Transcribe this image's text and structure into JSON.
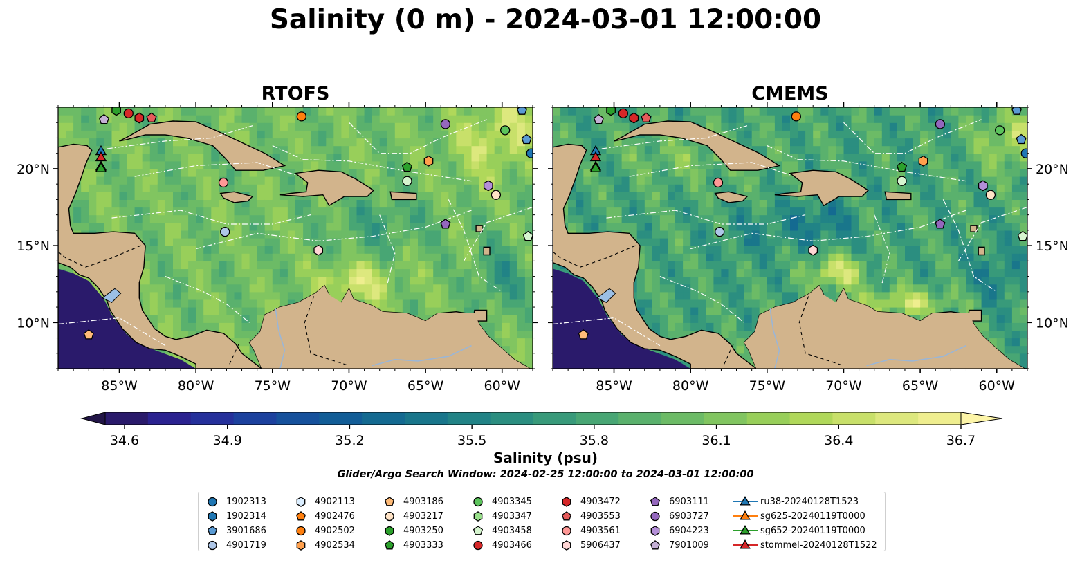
{
  "title": "Salinity (0 m) - 2024-03-01 12:00:00",
  "panels": [
    {
      "title": "RTOFS"
    },
    {
      "title": "CMEMS"
    }
  ],
  "chart_data": {
    "type": "heatmap",
    "colormap": "summer-yellow to deep blue (haline)",
    "colorbar": {
      "label": "Salinity (psu)",
      "min": 34.6,
      "max": 36.7,
      "ticks": [
        "34.6",
        "34.9",
        "35.2",
        "35.5",
        "35.8",
        "36.1",
        "36.4",
        "36.7"
      ],
      "extend": "both",
      "colors": [
        "#2a1a6b",
        "#2b2290",
        "#25309b",
        "#1c419e",
        "#16519c",
        "#125d97",
        "#146a91",
        "#19768b",
        "#218386",
        "#2b8e80",
        "#389a7a",
        "#48a674",
        "#5ab16d",
        "#6cbb66",
        "#81c560",
        "#98cf5a",
        "#b0d85a",
        "#c8e06a",
        "#dde87e",
        "#efee8f"
      ]
    },
    "xlim": [
      -89,
      -58
    ],
    "ylim": [
      7,
      24
    ],
    "x_ticks": [
      "85°W",
      "80°W",
      "75°W",
      "70°W",
      "65°W",
      "60°W"
    ],
    "y_ticks": [
      "10°N",
      "15°N",
      "20°N"
    ],
    "land_color": "#d2b48c",
    "lake_color": "#9bbfe6"
  },
  "footer": {
    "search_window": "Glider/Argo Search Window: 2024-02-25 12:00:00 to 2024-03-01 12:00:00"
  },
  "legend": {
    "items": [
      {
        "label": "1902313",
        "marker": "circle",
        "color": "#1f77b4"
      },
      {
        "label": "1902314",
        "marker": "hexagon",
        "color": "#1f77b4"
      },
      {
        "label": "3901686",
        "marker": "pentagon",
        "color": "#5a9bd4"
      },
      {
        "label": "4901719",
        "marker": "circle",
        "color": "#aec7e8"
      },
      {
        "label": "4902113",
        "marker": "hexagon",
        "color": "#dbeeff"
      },
      {
        "label": "4902476",
        "marker": "pentagon",
        "color": "#ff7f0e"
      },
      {
        "label": "4902502",
        "marker": "circle",
        "color": "#ff7f0e"
      },
      {
        "label": "4902534",
        "marker": "hexagon",
        "color": "#ffa04d"
      },
      {
        "label": "4903186",
        "marker": "pentagon",
        "color": "#ffbb78"
      },
      {
        "label": "4903217",
        "marker": "circle",
        "color": "#ffe3c6"
      },
      {
        "label": "4903250",
        "marker": "hexagon",
        "color": "#2ca02c"
      },
      {
        "label": "4903333",
        "marker": "pentagon",
        "color": "#2ca02c"
      },
      {
        "label": "4903345",
        "marker": "circle",
        "color": "#5cc45c"
      },
      {
        "label": "4903347",
        "marker": "hexagon",
        "color": "#98df8a"
      },
      {
        "label": "4903458",
        "marker": "pentagon",
        "color": "#d6f5cf"
      },
      {
        "label": "4903466",
        "marker": "circle",
        "color": "#d62728"
      },
      {
        "label": "4903472",
        "marker": "hexagon",
        "color": "#d62728"
      },
      {
        "label": "4903553",
        "marker": "pentagon",
        "color": "#e55b5b"
      },
      {
        "label": "4903561",
        "marker": "circle",
        "color": "#ff9896"
      },
      {
        "label": "5906437",
        "marker": "hexagon",
        "color": "#ffd6d5"
      },
      {
        "label": "6903111",
        "marker": "pentagon",
        "color": "#9467bd"
      },
      {
        "label": "6903727",
        "marker": "circle",
        "color": "#9467bd"
      },
      {
        "label": "6904223",
        "marker": "hexagon",
        "color": "#b48fd8"
      },
      {
        "label": "7901009",
        "marker": "pentagon",
        "color": "#c5b0d5"
      },
      {
        "label": "ru38-20240128T1523",
        "marker": "triangle-line",
        "color": "#1f77b4"
      },
      {
        "label": "sg625-20240119T0000",
        "marker": "triangle-line",
        "color": "#ff7f0e"
      },
      {
        "label": "sg652-20240119T0000",
        "marker": "triangle-line",
        "color": "#2ca02c"
      },
      {
        "label": "stommel-20240128T1522",
        "marker": "triangle-line",
        "color": "#d62728"
      }
    ]
  },
  "floats": [
    {
      "lon": -85.2,
      "lat": 23.8,
      "marker": "hexagon",
      "color": "#2ca02c"
    },
    {
      "lon": -84.4,
      "lat": 23.6,
      "marker": "circle",
      "color": "#d62728"
    },
    {
      "lon": -83.7,
      "lat": 23.3,
      "marker": "hexagon",
      "color": "#d62728"
    },
    {
      "lon": -82.9,
      "lat": 23.3,
      "marker": "pentagon",
      "color": "#e55b5b"
    },
    {
      "lon": -86.0,
      "lat": 23.2,
      "marker": "pentagon",
      "color": "#c5b0d5"
    },
    {
      "lon": -73.1,
      "lat": 23.4,
      "marker": "circle",
      "color": "#ff7f0e"
    },
    {
      "lon": -63.7,
      "lat": 22.9,
      "marker": "circle",
      "color": "#9467bd"
    },
    {
      "lon": -59.8,
      "lat": 22.5,
      "marker": "circle",
      "color": "#5cc45c"
    },
    {
      "lon": -58.7,
      "lat": 23.8,
      "marker": "pentagon",
      "color": "#5a9bd4"
    },
    {
      "lon": -58.4,
      "lat": 21.9,
      "marker": "pentagon",
      "color": "#5a9bd4"
    },
    {
      "lon": -58.1,
      "lat": 21.0,
      "marker": "circle",
      "color": "#1f77b4"
    },
    {
      "lon": -66.2,
      "lat": 20.1,
      "marker": "pentagon",
      "color": "#2ca02c"
    },
    {
      "lon": -64.8,
      "lat": 20.5,
      "marker": "hexagon",
      "color": "#ffa04d"
    },
    {
      "lon": -66.2,
      "lat": 19.2,
      "marker": "circle",
      "color": "#d6f5cf"
    },
    {
      "lon": -78.2,
      "lat": 19.1,
      "marker": "circle",
      "color": "#ff9896"
    },
    {
      "lon": -60.9,
      "lat": 18.9,
      "marker": "hexagon",
      "color": "#b48fd8"
    },
    {
      "lon": -60.4,
      "lat": 18.3,
      "marker": "circle",
      "color": "#ffe3c6"
    },
    {
      "lon": -78.1,
      "lat": 15.9,
      "marker": "circle",
      "color": "#aec7e8"
    },
    {
      "lon": -63.7,
      "lat": 16.4,
      "marker": "pentagon",
      "color": "#9467bd"
    },
    {
      "lon": -58.3,
      "lat": 15.6,
      "marker": "pentagon",
      "color": "#d6f5cf"
    },
    {
      "lon": -72.0,
      "lat": 14.7,
      "marker": "hexagon",
      "color": "#ffd6d5"
    },
    {
      "lon": -87.0,
      "lat": 9.2,
      "marker": "pentagon",
      "color": "#ffbb78"
    }
  ],
  "gliders": [
    {
      "lon": -86.2,
      "lat": 21.1,
      "color": "#1f77b4"
    },
    {
      "lon": -86.2,
      "lat": 20.1,
      "color": "#ff7f0e"
    },
    {
      "lon": -86.2,
      "lat": 20.0,
      "color": "#2ca02c"
    },
    {
      "lon": -86.2,
      "lat": 20.7,
      "color": "#d62728"
    }
  ]
}
